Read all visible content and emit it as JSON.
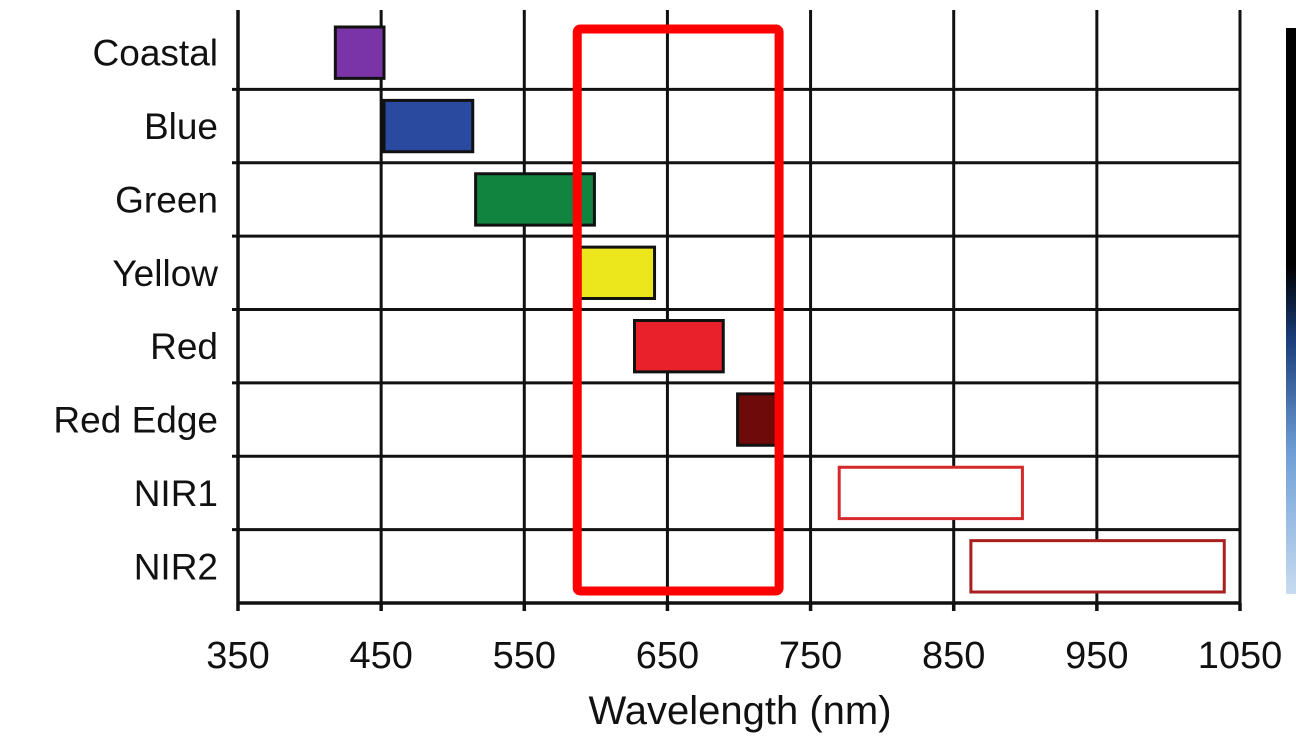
{
  "chart_data": {
    "type": "bar",
    "title": "",
    "xlabel": "Wavelength (nm)",
    "ylabel": "",
    "xlim": [
      350,
      1050
    ],
    "xticks": [
      "350",
      "450",
      "550",
      "650",
      "750",
      "850",
      "950",
      "1050"
    ],
    "grid": true,
    "categories": [
      "Coastal",
      "Blue",
      "Green",
      "Yellow",
      "Red",
      "Red Edge",
      "NIR1",
      "NIR2"
    ],
    "bands": [
      {
        "name": "Coastal",
        "start": 418,
        "end": 452,
        "fill": "#7b34a8",
        "stroke": "#111111"
      },
      {
        "name": "Blue",
        "start": 452,
        "end": 514,
        "fill": "#2a4aa0",
        "stroke": "#111111"
      },
      {
        "name": "Green",
        "start": 516,
        "end": 599,
        "fill": "#118540",
        "stroke": "#111111"
      },
      {
        "name": "Yellow",
        "start": 589,
        "end": 641,
        "fill": "#ece61c",
        "stroke": "#111111"
      },
      {
        "name": "Red",
        "start": 627,
        "end": 689,
        "fill": "#e8212b",
        "stroke": "#111111"
      },
      {
        "name": "Red Edge",
        "start": 699,
        "end": 728,
        "fill": "#6e0a0a",
        "stroke": "#111111"
      },
      {
        "name": "NIR1",
        "start": 770,
        "end": 898,
        "fill": "#ffffff",
        "stroke": "#d42a2a"
      },
      {
        "name": "NIR2",
        "start": 862,
        "end": 1039,
        "fill": "#ffffff",
        "stroke": "#a81f1f"
      }
    ],
    "highlight": {
      "start": 587,
      "end": 728,
      "color": "#ff0000"
    }
  },
  "side_image": {
    "colors": [
      "#000000",
      "#1a3d7a",
      "#6f9fd6",
      "#c8dcf0"
    ]
  }
}
